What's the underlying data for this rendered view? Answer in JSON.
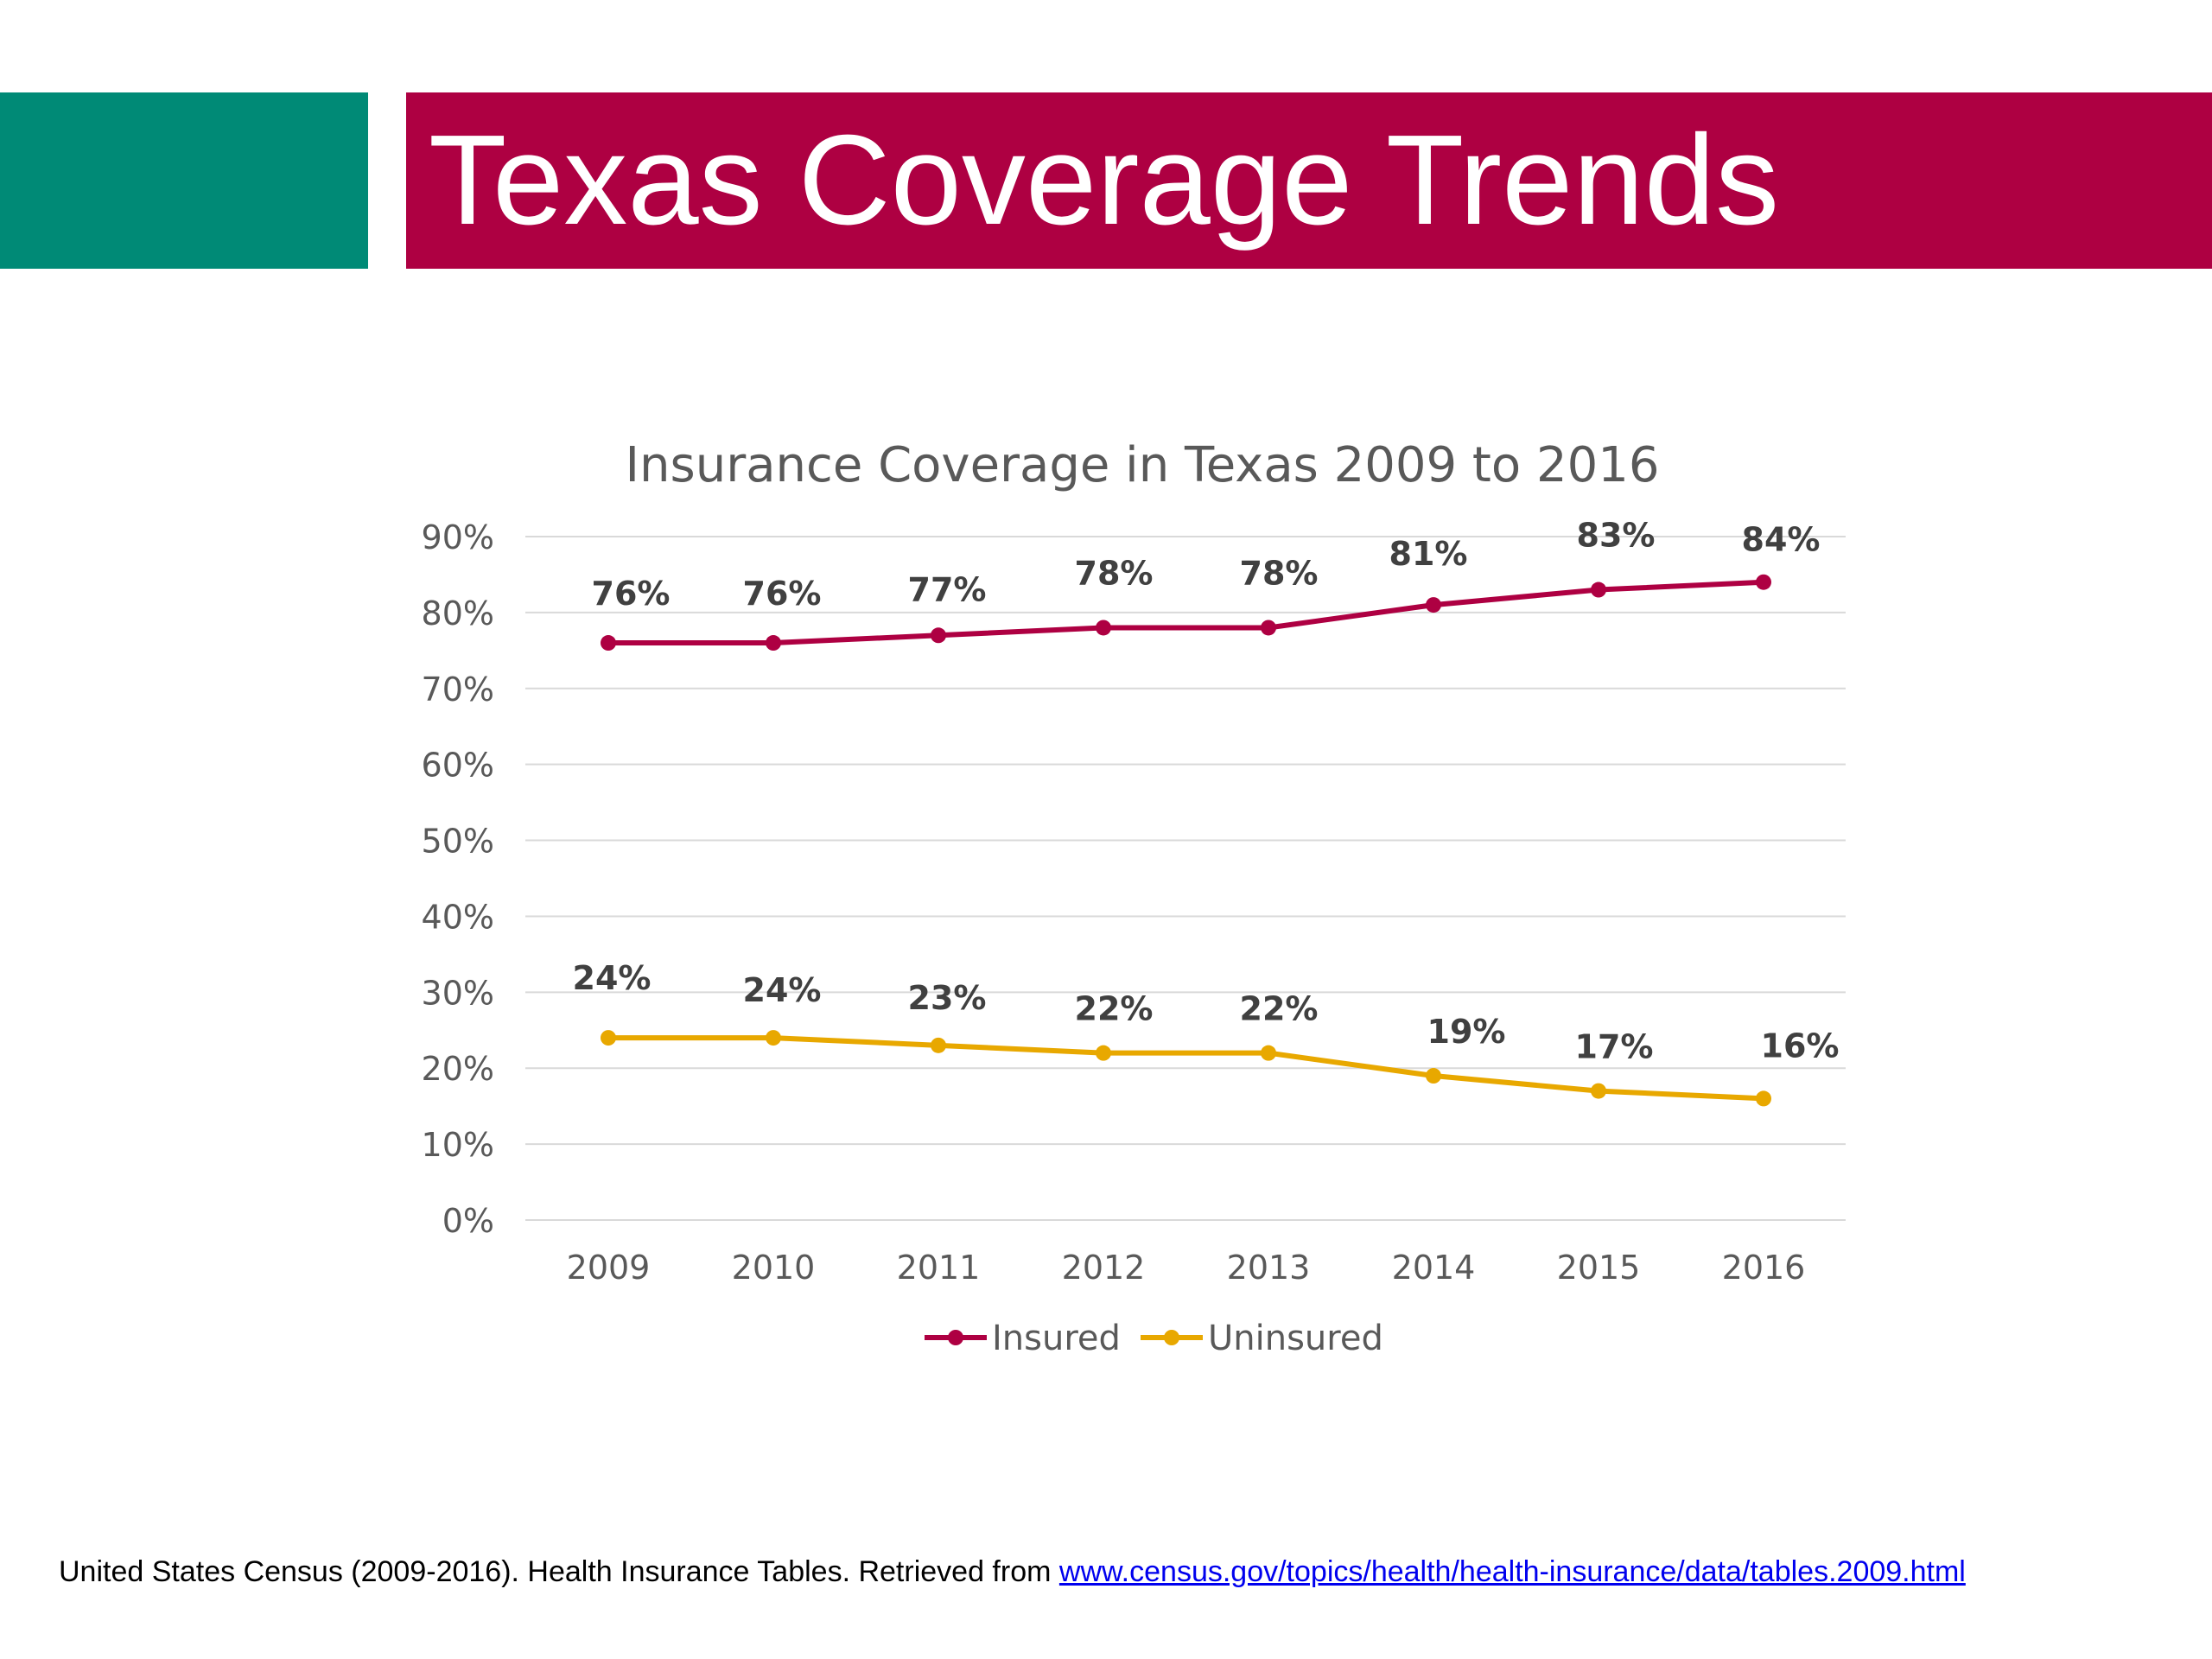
{
  "slide": {
    "title": "Texas Coverage Trends",
    "citation_text": "United States Census (2009-2016). Health Insurance Tables. Retrieved from ",
    "citation_link": "www.census.gov/topics/health/health-insurance/data/tables.2009.html"
  },
  "colors": {
    "teal": "#008a76",
    "title_bar": "#ae0042",
    "insured": "#ae0042",
    "uninsured": "#e8a800"
  },
  "chart_data": {
    "type": "line",
    "title": "Insurance Coverage in Texas 2009 to 2016",
    "categories": [
      "2009",
      "2010",
      "2011",
      "2012",
      "2013",
      "2014",
      "2015",
      "2016"
    ],
    "ylim": [
      0,
      90
    ],
    "yticks": [
      "0%",
      "10%",
      "20%",
      "30%",
      "40%",
      "50%",
      "60%",
      "70%",
      "80%",
      "90%"
    ],
    "grid": true,
    "legend": "bottom",
    "series": [
      {
        "name": "Insured",
        "values": [
          76,
          76,
          77,
          78,
          78,
          81,
          83,
          84
        ],
        "labels": [
          "76%",
          "76%",
          "77%",
          "78%",
          "78%",
          "81%",
          "83%",
          "84%"
        ]
      },
      {
        "name": "Uninsured",
        "values": [
          24,
          24,
          23,
          22,
          22,
          19,
          17,
          16
        ],
        "labels": [
          "24%",
          "24%",
          "23%",
          "22%",
          "22%",
          "19%",
          "17%",
          "16%"
        ]
      }
    ]
  }
}
